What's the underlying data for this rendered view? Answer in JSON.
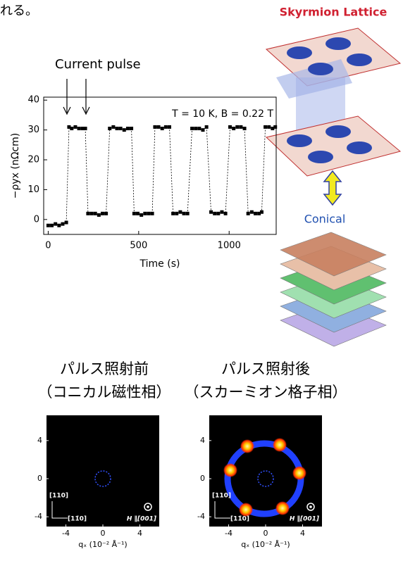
{
  "header": {
    "text": "れる。"
  },
  "chart_data": {
    "type": "line",
    "color": "#000000",
    "annotations": [
      "Current pulse",
      "T = 10 K, B = 0.22 T"
    ],
    "xlabel": "Time (s)",
    "ylabel": "−ρyx (nΩcm)",
    "x": [
      0,
      20,
      40,
      60,
      80,
      100,
      115,
      130,
      150,
      170,
      190,
      205,
      220,
      240,
      260,
      280,
      300,
      320,
      340,
      360,
      380,
      400,
      420,
      440,
      460,
      475,
      495,
      515,
      535,
      555,
      575,
      590,
      610,
      630,
      650,
      670,
      690,
      710,
      730,
      750,
      770,
      795,
      815,
      835,
      855,
      875,
      900,
      920,
      940,
      960,
      980,
      1005,
      1025,
      1045,
      1065,
      1085,
      1105,
      1125,
      1145,
      1165,
      1180,
      1200,
      1220,
      1240,
      1255
    ],
    "values": [
      -2,
      -2,
      -1.5,
      -2,
      -1.5,
      -1,
      31,
      30.5,
      31,
      30.5,
      30.5,
      30.5,
      2,
      2,
      2,
      1.5,
      2,
      2,
      30.5,
      31,
      30.5,
      30.5,
      30,
      30.5,
      30.5,
      2,
      2,
      1.5,
      2,
      2,
      2,
      31,
      31,
      30.5,
      31,
      31,
      2,
      2,
      2.5,
      2,
      2,
      30.5,
      30.5,
      30.5,
      30,
      31,
      2.5,
      2,
      2,
      2.5,
      2,
      31,
      30.5,
      31,
      31,
      30.5,
      2,
      2.5,
      2,
      2,
      2.5,
      31,
      31,
      30.5,
      31
    ],
    "xlim": [
      -25,
      1260
    ],
    "ylim": [
      -5,
      41
    ],
    "xticks": [
      0,
      500,
      1000
    ],
    "yticks": [
      0,
      10,
      20,
      30,
      40
    ]
  },
  "illustration": {
    "top_label": "Skyrmion Lattice",
    "bottom_label": "Conical"
  },
  "panels": [
    {
      "title": "パルス照射前",
      "subtitle": "（コニカル磁性相）",
      "xlim": [
        -6.1,
        6.1
      ],
      "ylim": [
        -6.1,
        6.1
      ],
      "xticks": [
        -4,
        0,
        4
      ],
      "yticks": [
        4,
        0,
        -4
      ],
      "direction_labels": [
        "[110]",
        "[11̄0]"
      ],
      "field_label": "H ∥[001]",
      "xlabel": "qₓ  (10⁻² Å⁻¹)"
    },
    {
      "title": "パルス照射後",
      "subtitle": "（スカーミオン格子相）",
      "xlim": [
        -6.1,
        6.1
      ],
      "ylim": [
        -6.1,
        6.1
      ],
      "xticks": [
        -4,
        0,
        4
      ],
      "yticks": [
        4,
        0,
        -4
      ],
      "direction_labels": [
        "[110]",
        "[11̄0]"
      ],
      "field_label": "H ∥[001]",
      "xlabel": "qₓ  (10⁻² Å⁻¹)"
    }
  ]
}
